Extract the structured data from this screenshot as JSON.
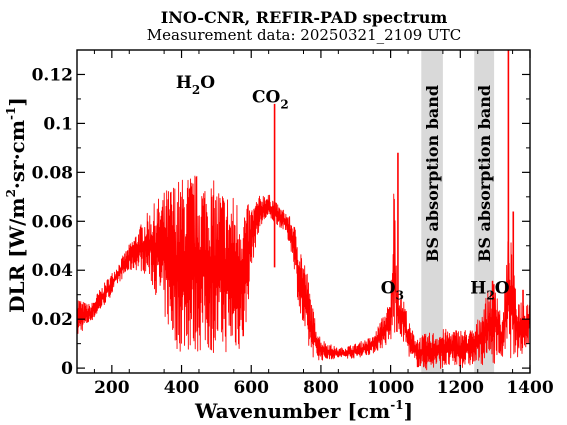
{
  "chart_data": {
    "type": "line",
    "title": "INO-CNR, REFIR-PAD spectrum",
    "subtitle": "Measurement data: 20250321_2109 UTC",
    "xlabel": {
      "main": "Wavenumber [cm",
      "sup": "-1",
      "end": "]"
    },
    "ylabel": {
      "a": "DLR [W/m",
      "sup1": "2",
      "b": "·sr·cm",
      "sup2": "-1",
      "c": "]"
    },
    "xlim": [
      100,
      1400
    ],
    "ylim": [
      -0.002,
      0.13
    ],
    "x_ticks": [
      200,
      400,
      600,
      800,
      1000,
      1200,
      1400
    ],
    "x_tick_labels": [
      "200",
      "400",
      "600",
      "800",
      "1000",
      "1200",
      "1400"
    ],
    "y_ticks": [
      0,
      0.02,
      0.04,
      0.06,
      0.08,
      0.1,
      0.12
    ],
    "y_tick_labels": [
      "0",
      "0.02",
      "0.04",
      "0.06",
      "0.08",
      "0.1",
      "0.12"
    ],
    "grid": false,
    "series_color": "#ff0000",
    "band_color": "#d9d9d9",
    "bands": [
      {
        "x": [
          1088,
          1150
        ],
        "label": "BS absorption band"
      },
      {
        "x": [
          1240,
          1297
        ],
        "label": "BS absorption band"
      }
    ],
    "annotations": [
      {
        "base": "H",
        "sub": "2",
        "rest": "O",
        "x": 440,
        "y": 0.1145
      },
      {
        "base": "CO",
        "sub": "2",
        "rest": "",
        "x": 655,
        "y": 0.1085
      },
      {
        "base": "O",
        "sub": "3",
        "rest": "",
        "x": 1005,
        "y": 0.0305
      },
      {
        "base": "H",
        "sub": "2",
        "rest": "O",
        "x": 1285,
        "y": 0.0305
      }
    ],
    "series": [
      {
        "x": [
          100,
          120,
          140,
          160,
          180,
          200,
          220,
          240,
          260,
          280,
          300,
          320,
          340,
          360,
          380,
          400,
          420,
          440,
          460,
          480,
          500,
          520,
          540,
          560,
          580,
          600,
          620,
          640,
          660,
          680,
          700,
          720,
          740,
          760,
          780,
          800,
          850,
          900,
          950,
          1000,
          1010,
          1020,
          1030,
          1040,
          1050,
          1060,
          1080,
          1100,
          1150,
          1200,
          1240,
          1300,
          1320,
          1340,
          1360,
          1380,
          1400
        ],
        "upper": [
          0.03,
          0.027,
          0.026,
          0.031,
          0.035,
          0.039,
          0.043,
          0.048,
          0.053,
          0.058,
          0.063,
          0.067,
          0.071,
          0.074,
          0.077,
          0.078,
          0.08,
          0.08,
          0.079,
          0.078,
          0.076,
          0.074,
          0.072,
          0.07,
          0.068,
          0.066,
          0.07,
          0.072,
          0.07,
          0.066,
          0.064,
          0.06,
          0.052,
          0.04,
          0.022,
          0.012,
          0.008,
          0.01,
          0.013,
          0.028,
          0.08,
          0.036,
          0.03,
          0.028,
          0.02,
          0.016,
          0.013,
          0.014,
          0.016,
          0.016,
          0.016,
          0.04,
          0.018,
          0.06,
          0.03,
          0.028,
          0.03
        ],
        "lower": [
          0.012,
          0.016,
          0.019,
          0.022,
          0.026,
          0.03,
          0.035,
          0.038,
          0.04,
          0.04,
          0.038,
          0.032,
          0.025,
          0.016,
          0.008,
          0.006,
          0.006,
          0.006,
          0.006,
          0.006,
          0.006,
          0.006,
          0.006,
          0.006,
          0.008,
          0.04,
          0.055,
          0.06,
          0.06,
          0.058,
          0.055,
          0.045,
          0.02,
          0.008,
          0.004,
          0.003,
          0.004,
          0.004,
          0.006,
          0.01,
          0.012,
          0.012,
          0.012,
          0.01,
          0.006,
          0.002,
          0.0,
          -0.001,
          0.0,
          0.0,
          0.001,
          0.002,
          0.004,
          0.004,
          0.004,
          0.006,
          0.01
        ],
        "spikes": [
          {
            "x": 667,
            "y": 0.108
          },
          {
            "x": 1021,
            "y": 0.088
          },
          {
            "x": 1338,
            "y": 0.13
          },
          {
            "x": 1352,
            "y": 0.064
          },
          {
            "x": 1380,
            "y": 0.032
          }
        ]
      }
    ]
  }
}
